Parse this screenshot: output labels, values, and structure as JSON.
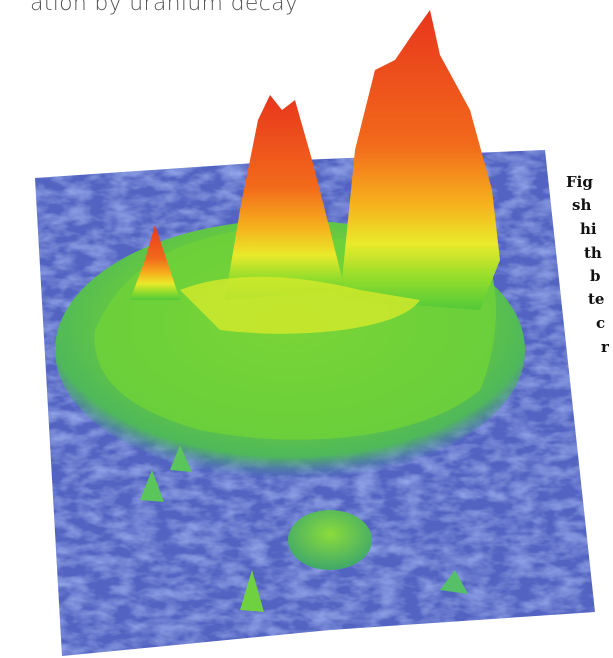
{
  "header": {
    "title": "ation by uranium decay"
  },
  "caption": {
    "lines": [
      "Fig",
      "sh",
      "hi",
      "th",
      "b",
      "te",
      "c",
      "r"
    ]
  }
}
